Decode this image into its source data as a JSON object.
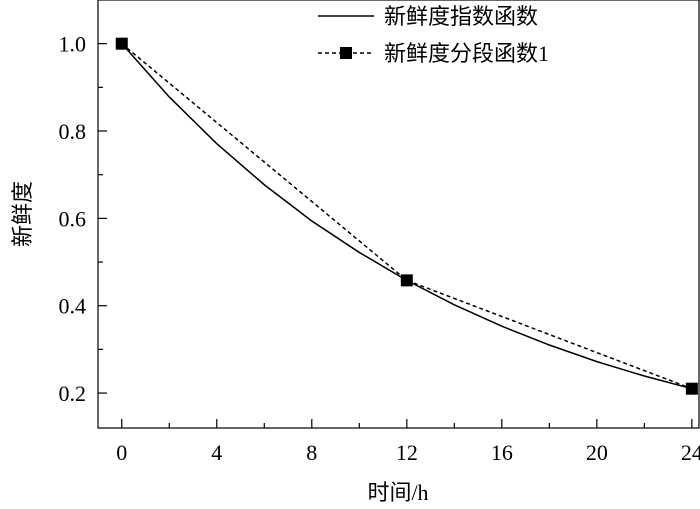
{
  "chart_data": {
    "type": "line",
    "xlabel": "时间/h",
    "ylabel": "新鲜度",
    "xlim": [
      -1,
      24.3
    ],
    "ylim": [
      0.12,
      1.1
    ],
    "xticks": [
      0,
      4,
      8,
      12,
      16,
      20,
      24
    ],
    "yticks": [
      0.2,
      0.4,
      0.6,
      0.8,
      1.0
    ],
    "xtick_labels": [
      "0",
      "4",
      "8",
      "12",
      "16",
      "20",
      "24"
    ],
    "ytick_labels": [
      "0.2",
      "0.4",
      "0.6",
      "0.8",
      "1.0"
    ],
    "legend_position": "top-right",
    "series": [
      {
        "name": "新鲜度指数函数",
        "style": "solid",
        "color": "#000000",
        "x": [
          0,
          2,
          4,
          6,
          8,
          10,
          12,
          14,
          16,
          18,
          20,
          22,
          24
        ],
        "y": [
          1.0,
          0.878,
          0.771,
          0.677,
          0.594,
          0.522,
          0.458,
          0.402,
          0.353,
          0.31,
          0.272,
          0.239,
          0.21
        ]
      },
      {
        "name": "新鲜度分段函数1",
        "style": "dashed",
        "marker": "square",
        "color": "#000000",
        "x": [
          0,
          12,
          24
        ],
        "y": [
          1.0,
          0.458,
          0.21
        ]
      }
    ]
  }
}
